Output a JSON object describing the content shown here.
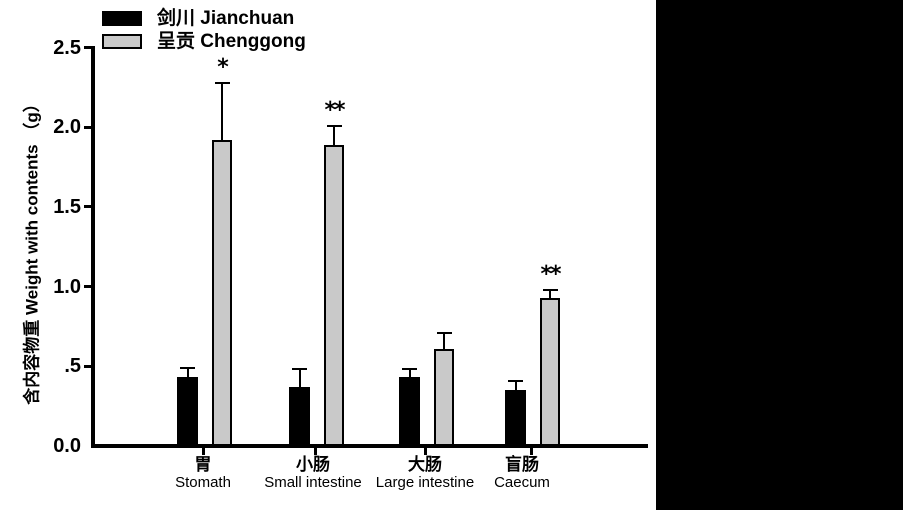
{
  "window": {
    "background": "#ffffff",
    "right_panel_color": "#000000"
  },
  "chart_data": {
    "type": "bar",
    "title": "",
    "xlabel": "",
    "ylabel": "含内容物重 Weight with contents （g）",
    "ylim": [
      0,
      2.5
    ],
    "grid": false,
    "legend_position": "top-left",
    "error_bars": "upper-only",
    "yticks": [
      {
        "label": "0.0",
        "value": 0
      },
      {
        "label": ".5",
        "value": 0.5
      },
      {
        "label": "1.0",
        "value": 1
      },
      {
        "label": "1.5",
        "value": 1.5
      },
      {
        "label": "2.0",
        "value": 2
      },
      {
        "label": "2.5",
        "value": 2.5
      }
    ],
    "categories": [
      {
        "zh": "胃",
        "en": "Stomath"
      },
      {
        "zh": "小肠",
        "en": "Small intestine"
      },
      {
        "zh": "大肠",
        "en": "Large intestine"
      },
      {
        "zh": "盲肠",
        "en": "Caecum"
      }
    ],
    "series": [
      {
        "name": "剑川 Jianchuan",
        "color": "#000000",
        "values": [
          0.43,
          0.37,
          0.43,
          0.35
        ],
        "errors_plus": [
          0.06,
          0.11,
          0.05,
          0.06
        ]
      },
      {
        "name": "呈贡 Chenggong",
        "color": "#c9c9c9",
        "values": [
          1.92,
          1.89,
          0.61,
          0.93
        ],
        "errors_plus": [
          0.36,
          0.12,
          0.1,
          0.05
        ]
      }
    ],
    "significance_markers": [
      {
        "category_index": 0,
        "series_index": 1,
        "marker": "*"
      },
      {
        "category_index": 1,
        "series_index": 1,
        "marker": "**"
      },
      {
        "category_index": 3,
        "series_index": 1,
        "marker": "**"
      }
    ]
  }
}
